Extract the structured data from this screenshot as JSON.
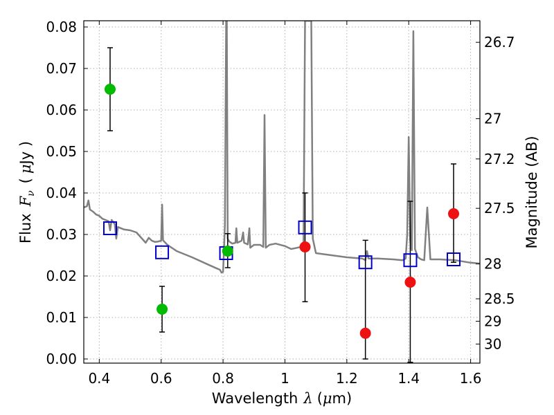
{
  "chart_data": {
    "type": "scatter",
    "xlabel_text": "Wavelength",
    "xlabel_symbol": "λ",
    "xlabel_unit_open": "(",
    "xlabel_unit_mu": "μ",
    "xlabel_unit_rest": "m)",
    "ylabel_text": "Flux",
    "ylabel_symbol": "F",
    "ylabel_sub": "ν",
    "ylabel_unit_open": "(",
    "ylabel_unit_mu": "μ",
    "ylabel_unit_rest": "Jy )",
    "y2label": "Magnitude (AB)",
    "xlim": [
      0.35,
      1.63
    ],
    "ylim": [
      -0.001,
      0.0815
    ],
    "grid": true,
    "x_ticks": [
      0.4,
      0.6,
      0.8,
      1.0,
      1.2,
      1.4,
      1.6
    ],
    "x_tick_labels": [
      "0.4",
      "0.6",
      "0.8",
      "1",
      "1.2",
      "1.4",
      "1.6"
    ],
    "y_ticks": [
      0.0,
      0.01,
      0.02,
      0.03,
      0.04,
      0.05,
      0.06,
      0.07,
      0.08
    ],
    "y_tick_labels": [
      "0.00",
      "0.01",
      "0.02",
      "0.03",
      "0.04",
      "0.05",
      "0.06",
      "0.07",
      "0.08"
    ],
    "y2_ticks": [
      {
        "label": "26.7",
        "flux": 0.0763
      },
      {
        "label": "27",
        "flux": 0.0579
      },
      {
        "label": "27.2",
        "flux": 0.0482
      },
      {
        "label": "27.5",
        "flux": 0.0363
      },
      {
        "label": "28",
        "flux": 0.0229
      },
      {
        "label": "28.5",
        "flux": 0.0145
      },
      {
        "label": "29",
        "flux": 0.0091
      },
      {
        "label": "30",
        "flux": 0.0036
      }
    ],
    "series": [
      {
        "kind": "line",
        "color": "#808080",
        "points": [
          [
            0.35,
            0.0365
          ],
          [
            0.36,
            0.0368
          ],
          [
            0.365,
            0.0382
          ],
          [
            0.37,
            0.036
          ],
          [
            0.38,
            0.0355
          ],
          [
            0.39,
            0.0348
          ],
          [
            0.4,
            0.0345
          ],
          [
            0.41,
            0.0338
          ],
          [
            0.42,
            0.0335
          ],
          [
            0.43,
            0.0332
          ],
          [
            0.435,
            0.031
          ],
          [
            0.44,
            0.0335
          ],
          [
            0.45,
            0.0325
          ],
          [
            0.455,
            0.029
          ],
          [
            0.46,
            0.0318
          ],
          [
            0.48,
            0.0312
          ],
          [
            0.5,
            0.031
          ],
          [
            0.52,
            0.0305
          ],
          [
            0.55,
            0.028
          ],
          [
            0.56,
            0.0292
          ],
          [
            0.57,
            0.0285
          ],
          [
            0.58,
            0.0282
          ],
          [
            0.59,
            0.0283
          ],
          [
            0.6,
            0.0285
          ],
          [
            0.603,
            0.0372
          ],
          [
            0.606,
            0.0286
          ],
          [
            0.62,
            0.0275
          ],
          [
            0.65,
            0.026
          ],
          [
            0.7,
            0.0245
          ],
          [
            0.75,
            0.0228
          ],
          [
            0.78,
            0.0218
          ],
          [
            0.79,
            0.0215
          ],
          [
            0.795,
            0.0208
          ],
          [
            0.8,
            0.021
          ],
          [
            0.803,
            0.026
          ],
          [
            0.806,
            0.0325
          ],
          [
            0.81,
            0.0815
          ],
          [
            0.812,
            0.0815
          ],
          [
            0.815,
            0.029
          ],
          [
            0.82,
            0.0283
          ],
          [
            0.83,
            0.0278
          ],
          [
            0.84,
            0.028
          ],
          [
            0.843,
            0.0315
          ],
          [
            0.846,
            0.028
          ],
          [
            0.86,
            0.0285
          ],
          [
            0.865,
            0.0305
          ],
          [
            0.868,
            0.028
          ],
          [
            0.88,
            0.0276
          ],
          [
            0.885,
            0.0315
          ],
          [
            0.888,
            0.0268
          ],
          [
            0.9,
            0.0275
          ],
          [
            0.92,
            0.0275
          ],
          [
            0.93,
            0.027
          ],
          [
            0.934,
            0.0588
          ],
          [
            0.938,
            0.0268
          ],
          [
            0.95,
            0.0275
          ],
          [
            0.97,
            0.0278
          ],
          [
            1.0,
            0.0272
          ],
          [
            1.02,
            0.0265
          ],
          [
            1.04,
            0.0268
          ],
          [
            1.06,
            0.0272
          ],
          [
            1.065,
            0.0815
          ],
          [
            1.085,
            0.0815
          ],
          [
            1.09,
            0.029
          ],
          [
            1.1,
            0.0255
          ],
          [
            1.15,
            0.025
          ],
          [
            1.2,
            0.0245
          ],
          [
            1.25,
            0.0242
          ],
          [
            1.26,
            0.0238
          ],
          [
            1.265,
            0.026
          ],
          [
            1.27,
            0.0242
          ],
          [
            1.3,
            0.0242
          ],
          [
            1.35,
            0.024
          ],
          [
            1.38,
            0.0238
          ],
          [
            1.39,
            0.0242
          ],
          [
            1.395,
            0.03
          ],
          [
            1.4,
            0.0535
          ],
          [
            1.405,
            0.0285
          ],
          [
            1.41,
            0.0262
          ],
          [
            1.415,
            0.079
          ],
          [
            1.42,
            0.0265
          ],
          [
            1.43,
            0.0245
          ],
          [
            1.44,
            0.024
          ],
          [
            1.45,
            0.0238
          ],
          [
            1.46,
            0.0365
          ],
          [
            1.47,
            0.024
          ],
          [
            1.5,
            0.024
          ],
          [
            1.55,
            0.0238
          ],
          [
            1.6,
            0.0232
          ],
          [
            1.63,
            0.023
          ]
        ]
      },
      {
        "kind": "marker",
        "marker": "square",
        "color": "#0000cc",
        "points": [
          [
            0.435,
            0.0315
          ],
          [
            0.603,
            0.0257
          ],
          [
            0.81,
            0.0255
          ],
          [
            1.065,
            0.0317
          ],
          [
            1.26,
            0.0233
          ],
          [
            1.405,
            0.0238
          ],
          [
            1.545,
            0.024
          ]
        ]
      },
      {
        "kind": "marker",
        "marker": "circle",
        "color": "#00bb00",
        "points": [
          [
            0.435,
            0.065
          ],
          [
            0.603,
            0.012
          ],
          [
            0.815,
            0.026
          ]
        ],
        "errors": [
          [
            0.055,
            0.075
          ],
          [
            0.0065,
            0.0175
          ],
          [
            0.022,
            0.0302
          ]
        ]
      },
      {
        "kind": "marker",
        "marker": "circle",
        "color": "#ee1111",
        "points": [
          [
            1.065,
            0.027
          ],
          [
            1.26,
            0.0062
          ],
          [
            1.405,
            0.0185
          ],
          [
            1.545,
            0.035
          ]
        ],
        "errors": [
          [
            0.0138,
            0.04
          ],
          [
            0.0,
            0.0286
          ],
          [
            -0.0008,
            0.038
          ],
          [
            0.0233,
            0.047
          ]
        ]
      }
    ]
  }
}
